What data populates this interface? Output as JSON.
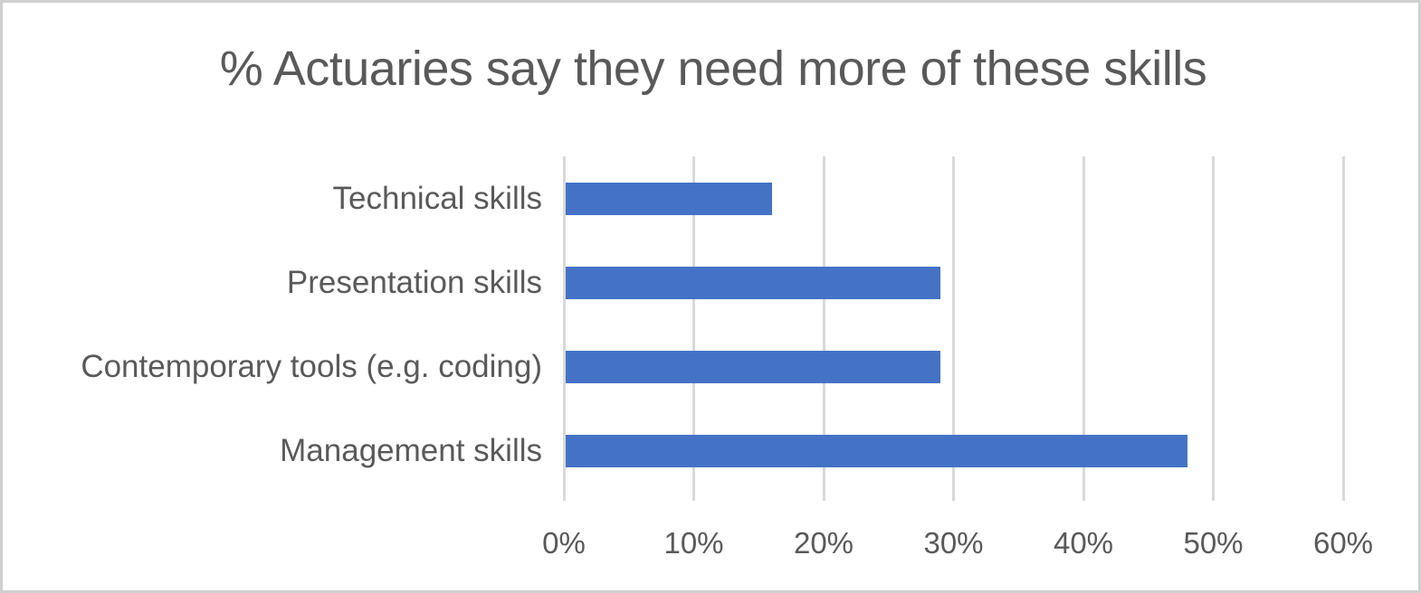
{
  "window": {
    "background": "#ffffff",
    "frame_border_color": "#cfcfcf"
  },
  "chart_data": {
    "type": "bar",
    "orientation": "horizontal",
    "title": "% Actuaries say they need more of these skills",
    "categories": [
      "Technical skills",
      "Presentation skills",
      "Contemporary tools (e.g. coding)",
      "Management skills"
    ],
    "values": [
      16,
      29,
      29,
      48
    ],
    "xlabel": "",
    "ylabel": "",
    "x_tick_labels": [
      "0%",
      "10%",
      "20%",
      "30%",
      "40%",
      "50%",
      "60%"
    ],
    "x_tick_values": [
      0,
      10,
      20,
      30,
      40,
      50,
      60
    ],
    "xlim": [
      0,
      60
    ],
    "grid": true,
    "legend": false,
    "bar_color": "#4472C4",
    "gridline_color": "#D9D9D9",
    "text_color": "#595959"
  }
}
